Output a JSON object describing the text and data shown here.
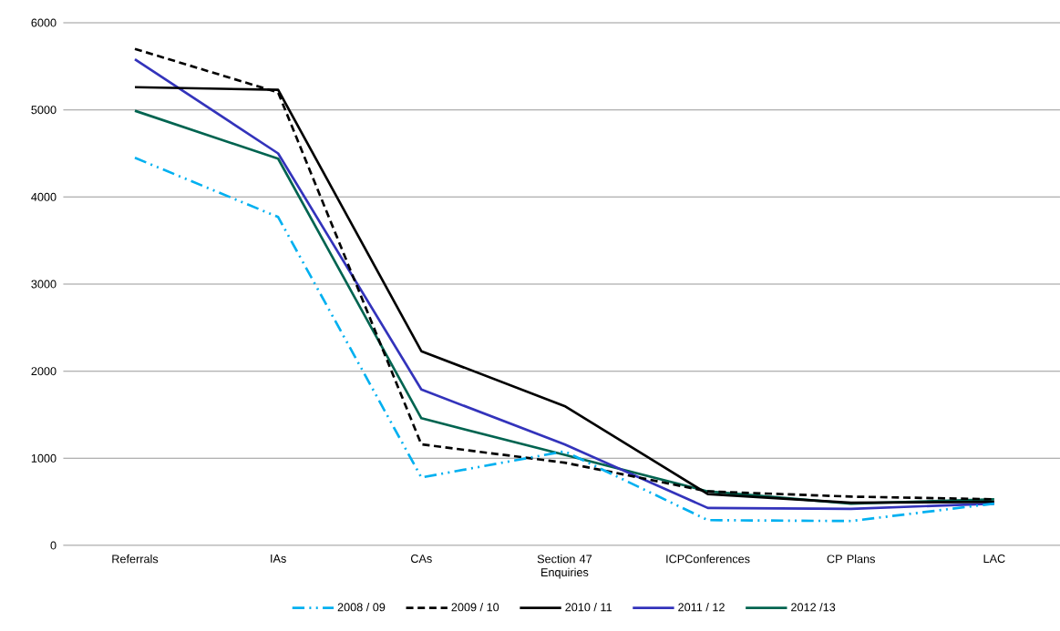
{
  "chart_data": {
    "type": "line",
    "categories": [
      "Referrals",
      "IAs",
      "CAs",
      "Section 47 Enquiries",
      "ICPConferences",
      "CP Plans",
      "LAC"
    ],
    "series": [
      {
        "name": "2008 / 09",
        "color": "#00b0f0",
        "line_style": "dashdotdot",
        "values": [
          4450,
          3770,
          780,
          1080,
          290,
          280,
          480
        ]
      },
      {
        "name": "2009 / 10",
        "color": "#000000",
        "line_style": "dashed",
        "values": [
          5700,
          5200,
          1160,
          950,
          620,
          560,
          530
        ]
      },
      {
        "name": "2010 / 11",
        "color": "#000000",
        "line_style": "solid",
        "values": [
          5260,
          5230,
          2230,
          1600,
          590,
          490,
          500
        ]
      },
      {
        "name": "2011 / 12",
        "color": "#3333bb",
        "line_style": "solid",
        "values": [
          5580,
          4500,
          1790,
          1160,
          430,
          420,
          480
        ]
      },
      {
        "name": "2012 /13",
        "color": "#006450",
        "line_style": "solid",
        "values": [
          4990,
          4440,
          1460,
          1040,
          620,
          480,
          530
        ]
      }
    ],
    "ylim": [
      0,
      6000
    ],
    "yticks": [
      0,
      1000,
      2000,
      3000,
      4000,
      5000,
      6000
    ],
    "grid": "y",
    "legend": "bottom",
    "marker": "none"
  }
}
